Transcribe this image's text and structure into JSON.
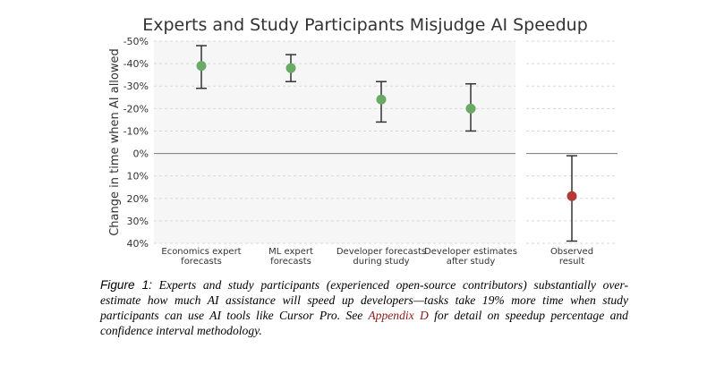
{
  "chart_data": {
    "type": "scatter",
    "title": "Experts and Study Participants Misjudge AI Speedup",
    "ylabel": "Change in time when AI allowed",
    "ylim": [
      -50,
      40
    ],
    "yticks": [
      -50,
      -40,
      -30,
      -20,
      -10,
      0,
      10,
      20,
      30,
      40
    ],
    "ytick_labels": [
      "-50%",
      "-40%",
      "-30%",
      "-20%",
      "-10%",
      "0%",
      "10%",
      "20%",
      "30%",
      "40%"
    ],
    "y_axis_inverted": true,
    "grid": "horizontal dashed",
    "zero_line": true,
    "panels": [
      {
        "name": "forecasts",
        "background": "#f6f6f6",
        "points": [
          {
            "label": [
              "Economics expert",
              "forecasts"
            ],
            "value": -39,
            "ci_low": -48,
            "ci_high": -29,
            "color": "#6aaa64"
          },
          {
            "label": [
              "ML expert",
              "forecasts"
            ],
            "value": -38,
            "ci_low": -44,
            "ci_high": -32,
            "color": "#6aaa64"
          },
          {
            "label": [
              "Developer forecasts",
              "during study"
            ],
            "value": -24,
            "ci_low": -32,
            "ci_high": -14,
            "color": "#6aaa64"
          },
          {
            "label": [
              "Developer estimates",
              "after study"
            ],
            "value": -20,
            "ci_low": -31,
            "ci_high": -10,
            "color": "#6aaa64"
          }
        ]
      },
      {
        "name": "observed",
        "background": "#ffffff",
        "points": [
          {
            "label": [
              "Observed",
              "result"
            ],
            "value": 19,
            "ci_low": 1,
            "ci_high": 39,
            "color": "#b13a34"
          }
        ]
      }
    ]
  },
  "caption": {
    "figure_label": "Figure 1:",
    "text_before_link": "Experts and study participants (experienced open-source contributors) substantially over-estimate how much AI assistance will speed up developers—tasks take 19% more time when study participants can use AI tools like Cursor Pro. See ",
    "link_text": "Appendix D",
    "text_after_link": " for detail on speedup percentage and confidence interval methodology."
  }
}
